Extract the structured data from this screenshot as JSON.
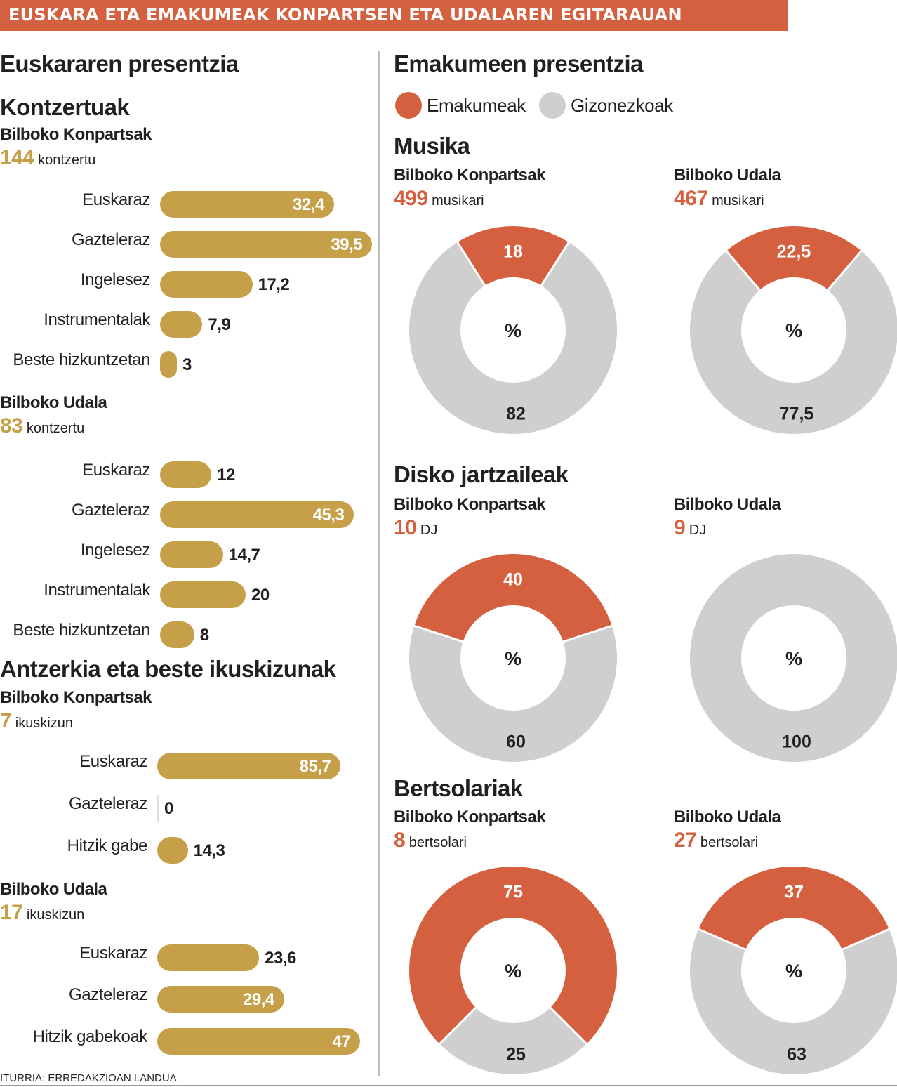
{
  "banner": {
    "title": "EUSKARA ETA EMAKUMEAK KONPARTSEN ETA UDALAREN EGITARAUAN"
  },
  "left": {
    "title": "Euskararen presentzia"
  },
  "right": {
    "title": "Emakumeen presentzia"
  },
  "legend": {
    "women": {
      "label": "Emakumeak",
      "color": "#d5603f"
    },
    "men": {
      "label": "Gizonezkoak",
      "color": "#cfcfcf"
    }
  },
  "colors": {
    "gold": "#c6a049",
    "red": "#d5603f",
    "grey": "#cfcfcf",
    "text": "#231f20"
  },
  "source": "ITURRIA: ERREDAKZIOAN LANDUA",
  "chart_data": [
    {
      "type": "bar",
      "section": "Kontzertuak",
      "org": "Bilboko Konpartsak",
      "count": "144",
      "unit": "kontzertu",
      "categories": [
        "Euskaraz",
        "Gazteleraz",
        "Ingelesez",
        "Instrumentalak",
        "Beste hizkuntzetan"
      ],
      "values": [
        32.4,
        39.5,
        17.2,
        7.9,
        3
      ],
      "labels": [
        "32,4",
        "39,5",
        "17,2",
        "7,9",
        "3"
      ]
    },
    {
      "type": "bar",
      "org": "Bilboko Udala",
      "count": "83",
      "unit": "kontzertu",
      "categories": [
        "Euskaraz",
        "Gazteleraz",
        "Ingelesez",
        "Instrumentalak",
        "Beste hizkuntzetan"
      ],
      "values": [
        12,
        45.3,
        14.7,
        20,
        8
      ],
      "labels": [
        "12",
        "45,3",
        "14,7",
        "20",
        "8"
      ]
    },
    {
      "type": "bar",
      "section": "Antzerkia eta beste ikuskizunak",
      "org": "Bilboko Konpartsak",
      "count": "7",
      "unit": "ikuskizun",
      "categories": [
        "Euskaraz",
        "Gazteleraz",
        "Hitzik gabe"
      ],
      "values": [
        85.7,
        0,
        14.3
      ],
      "labels": [
        "85,7",
        "0",
        "14,3"
      ]
    },
    {
      "type": "bar",
      "org": "Bilboko Udala",
      "count": "17",
      "unit": "ikuskizun",
      "categories": [
        "Euskaraz",
        "Gazteleraz",
        "Hitzik gabekoak"
      ],
      "values": [
        23.6,
        29.4,
        47
      ],
      "labels": [
        "23,6",
        "29,4",
        "47"
      ]
    },
    {
      "type": "pie",
      "section": "Musika",
      "org": "Bilboko Konpartsak",
      "count": "499",
      "unit": "musikari",
      "center": "%",
      "values": [
        18,
        82
      ],
      "labels": [
        "18",
        "82"
      ],
      "series": [
        "Emakumeak",
        "Gizonezkoak"
      ]
    },
    {
      "type": "pie",
      "org": "Bilboko Udala",
      "count": "467",
      "unit": "musikari",
      "center": "%",
      "values": [
        22.5,
        77.5
      ],
      "labels": [
        "22,5",
        "77,5"
      ],
      "series": [
        "Emakumeak",
        "Gizonezkoak"
      ]
    },
    {
      "type": "pie",
      "section": "Disko jartzaileak",
      "org": "Bilboko Konpartsak",
      "count": "10",
      "unit": "DJ",
      "center": "%",
      "values": [
        40,
        60
      ],
      "labels": [
        "40",
        "60"
      ],
      "series": [
        "Emakumeak",
        "Gizonezkoak"
      ]
    },
    {
      "type": "pie",
      "org": "Bilboko Udala",
      "count": "9",
      "unit": "DJ",
      "center": "%",
      "values": [
        0,
        100
      ],
      "labels": [
        "",
        "100"
      ],
      "series": [
        "Emakumeak",
        "Gizonezkoak"
      ]
    },
    {
      "type": "pie",
      "section": "Bertsolariak",
      "org": "Bilboko Konpartsak",
      "count": "8",
      "unit": "bertsolari",
      "center": "%",
      "values": [
        75,
        25
      ],
      "labels": [
        "75",
        "25"
      ],
      "series": [
        "Emakumeak",
        "Gizonezkoak"
      ]
    },
    {
      "type": "pie",
      "org": "Bilboko Udala",
      "count": "27",
      "unit": "bertsolari",
      "center": "%",
      "values": [
        37,
        63
      ],
      "labels": [
        "37",
        "63"
      ],
      "series": [
        "Emakumeak",
        "Gizonezkoak"
      ]
    }
  ]
}
